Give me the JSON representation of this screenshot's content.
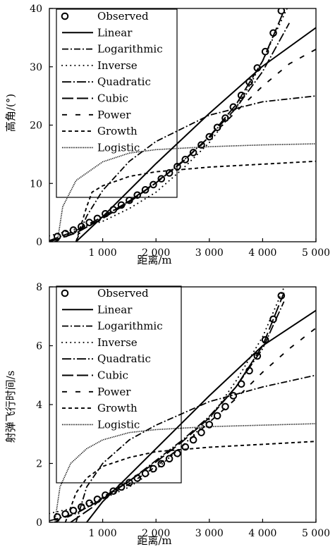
{
  "chart_data": [
    {
      "type": "line",
      "xlabel": "距离/m",
      "ylabel": "高角/(°)",
      "xlim": [
        0,
        5000
      ],
      "ylim": [
        0,
        40
      ],
      "xticks": [
        1000,
        2000,
        3000,
        4000,
        5000
      ],
      "xtick_labels": [
        "1 000",
        "2 000",
        "3 000",
        "4 000",
        "5 000"
      ],
      "yticks": [
        0,
        10,
        20,
        30,
        40
      ],
      "ytick_labels": [
        "0",
        "10",
        "20",
        "30",
        "40"
      ],
      "legend_position": "top-left, inside plot",
      "grid": false,
      "series": [
        {
          "name": "Observed",
          "style": "circles",
          "x": [
            150,
            300,
            450,
            600,
            750,
            900,
            1050,
            1200,
            1350,
            1500,
            1650,
            1800,
            1950,
            2100,
            2250,
            2400,
            2550,
            2700,
            2850,
            3000,
            3150,
            3300,
            3450,
            3600,
            3750,
            3900,
            4050,
            4200,
            4350
          ],
          "y": [
            0.9,
            1.4,
            2.0,
            2.6,
            3.3,
            4.0,
            4.8,
            5.5,
            6.3,
            7.1,
            8.0,
            8.9,
            9.8,
            10.8,
            11.8,
            12.9,
            14.1,
            15.3,
            16.6,
            18.0,
            19.6,
            21.2,
            23.1,
            25.1,
            27.4,
            29.8,
            32.6,
            35.8,
            39.6
          ]
        },
        {
          "name": "Linear",
          "style": "solid",
          "x": [
            500,
            1000,
            2000,
            3000,
            4000,
            5000
          ],
          "y": [
            0.0,
            4.3,
            13.4,
            22.0,
            30.1,
            36.7
          ]
        },
        {
          "name": "Logarithmic",
          "style": "dash-dot",
          "x": [
            500,
            700,
            1000,
            1500,
            2000,
            3000,
            4000,
            5000
          ],
          "y": [
            0.0,
            4.4,
            8.8,
            13.8,
            17.2,
            21.7,
            24.0,
            25.0
          ]
        },
        {
          "name": "Inverse",
          "style": "dotted",
          "x": [
            0,
            500,
            1000,
            1500,
            2000,
            2500,
            3000,
            3500,
            3800,
            4000,
            4200,
            4500,
            5000
          ],
          "y": [
            1.0,
            2.2,
            3.5,
            5.7,
            8.5,
            12.5,
            17.0,
            23.0,
            27.5,
            31.0,
            35.0,
            40.8,
            44.0
          ]
        },
        {
          "name": "Quadratic",
          "style": "long-dash-dot",
          "x": [
            0,
            500,
            1000,
            1500,
            2000,
            2500,
            3000,
            3500,
            4000,
            4500
          ],
          "y": [
            0.2,
            1.9,
            4.3,
            7.0,
            10.1,
            13.8,
            18.0,
            22.9,
            29.2,
            37.5
          ]
        },
        {
          "name": "Cubic",
          "style": "long-dash",
          "x": [
            0,
            500,
            1000,
            1500,
            2000,
            2500,
            3000,
            3500,
            4000,
            4400
          ],
          "y": [
            0.0,
            1.5,
            4.0,
            6.8,
            10.1,
            13.7,
            18.0,
            23.5,
            31.0,
            39.6
          ]
        },
        {
          "name": "Power",
          "style": "dashed",
          "x": [
            100,
            200,
            500,
            1000,
            1500,
            2000,
            2500,
            3000,
            3500,
            4000,
            4500,
            5000
          ],
          "y": [
            0.0,
            0.4,
            1.7,
            4.2,
            7.0,
            10.2,
            13.8,
            17.8,
            22.3,
            26.7,
            30.5,
            33.0
          ]
        },
        {
          "name": "Growth",
          "style": "short-dash",
          "x": [
            500,
            700,
            800,
            1000,
            1500,
            2000,
            3000,
            4000,
            5000
          ],
          "y": [
            0.0,
            6.0,
            8.5,
            9.6,
            11.2,
            12.0,
            12.8,
            13.3,
            13.8
          ]
        },
        {
          "name": "Logistic",
          "style": "fine-dotted",
          "x": [
            150,
            250,
            500,
            1000,
            1500,
            2000,
            3000,
            4000,
            5000
          ],
          "y": [
            0.0,
            6.0,
            10.5,
            13.7,
            15.2,
            15.8,
            16.3,
            16.6,
            16.8
          ]
        }
      ]
    },
    {
      "type": "line",
      "xlabel": "距离/m",
      "ylabel": "射弹飞行时间/s",
      "xlim": [
        0,
        5000
      ],
      "ylim": [
        0,
        8
      ],
      "xticks": [
        1000,
        2000,
        3000,
        4000,
        5000
      ],
      "xtick_labels": [
        "1 000",
        "2 000",
        "3 000",
        "4 000",
        "5 000"
      ],
      "yticks": [
        0,
        2,
        4,
        6,
        8
      ],
      "ytick_labels": [
        "0",
        "2",
        "4",
        "6",
        "8"
      ],
      "legend_position": "top-left, inside plot",
      "grid": false,
      "series": [
        {
          "name": "Observed",
          "style": "circles",
          "x": [
            150,
            300,
            450,
            600,
            750,
            900,
            1050,
            1200,
            1350,
            1500,
            1650,
            1800,
            1950,
            2100,
            2250,
            2400,
            2550,
            2700,
            2850,
            3000,
            3150,
            3300,
            3450,
            3600,
            3750,
            3900,
            4050,
            4200,
            4350
          ],
          "y": [
            0.18,
            0.28,
            0.4,
            0.52,
            0.65,
            0.78,
            0.92,
            1.06,
            1.2,
            1.35,
            1.5,
            1.66,
            1.82,
            1.99,
            2.16,
            2.34,
            2.56,
            2.8,
            3.05,
            3.32,
            3.62,
            3.93,
            4.3,
            4.7,
            5.15,
            5.65,
            6.2,
            6.9,
            7.7
          ]
        },
        {
          "name": "Linear",
          "style": "solid",
          "x": [
            700,
            1000,
            2000,
            3000,
            4000,
            5000
          ],
          "y": [
            0.0,
            0.7,
            2.5,
            4.3,
            6.0,
            7.2
          ]
        },
        {
          "name": "Logarithmic",
          "style": "dash-dot",
          "x": [
            500,
            700,
            1000,
            1500,
            2000,
            3000,
            4000,
            5000
          ],
          "y": [
            0.0,
            1.2,
            2.0,
            2.8,
            3.3,
            4.1,
            4.6,
            5.0
          ]
        },
        {
          "name": "Inverse",
          "style": "dotted",
          "x": [
            0,
            500,
            1000,
            1500,
            2000,
            2500,
            3000,
            3500,
            4000,
            4500
          ],
          "y": [
            0.3,
            0.5,
            0.8,
            1.2,
            1.8,
            2.6,
            3.5,
            4.8,
            6.3,
            8.4
          ]
        },
        {
          "name": "Quadratic",
          "style": "long-dash-dot",
          "x": [
            0,
            500,
            1000,
            1500,
            2000,
            2500,
            3000,
            3500,
            4000,
            4400
          ],
          "y": [
            0.05,
            0.3,
            0.8,
            1.4,
            2.1,
            2.8,
            3.6,
            4.6,
            5.9,
            7.5
          ]
        },
        {
          "name": "Cubic",
          "style": "long-dash",
          "x": [
            400,
            800,
            1000,
            1500,
            2000,
            2500,
            3000,
            3500,
            4000,
            4400
          ],
          "y": [
            0.0,
            0.5,
            0.85,
            1.4,
            2.05,
            2.75,
            3.55,
            4.6,
            6.0,
            7.8
          ]
        },
        {
          "name": "Power",
          "style": "dashed",
          "x": [
            100,
            500,
            1000,
            1500,
            2000,
            2500,
            3000,
            3500,
            4000,
            4500,
            5000
          ],
          "y": [
            0.0,
            0.3,
            0.8,
            1.3,
            1.9,
            2.6,
            3.4,
            4.2,
            5.1,
            5.9,
            6.6
          ]
        },
        {
          "name": "Growth",
          "style": "short-dash",
          "x": [
            300,
            500,
            700,
            1000,
            1500,
            2000,
            3000,
            4000,
            5000
          ],
          "y": [
            0.0,
            1.0,
            1.5,
            1.9,
            2.2,
            2.4,
            2.55,
            2.65,
            2.75
          ]
        },
        {
          "name": "Logistic",
          "style": "fine-dotted",
          "x": [
            100,
            200,
            400,
            700,
            1000,
            1500,
            2000,
            3000,
            4000,
            5000
          ],
          "y": [
            0.0,
            1.2,
            2.0,
            2.5,
            2.8,
            3.05,
            3.15,
            3.25,
            3.3,
            3.35
          ]
        }
      ]
    }
  ]
}
